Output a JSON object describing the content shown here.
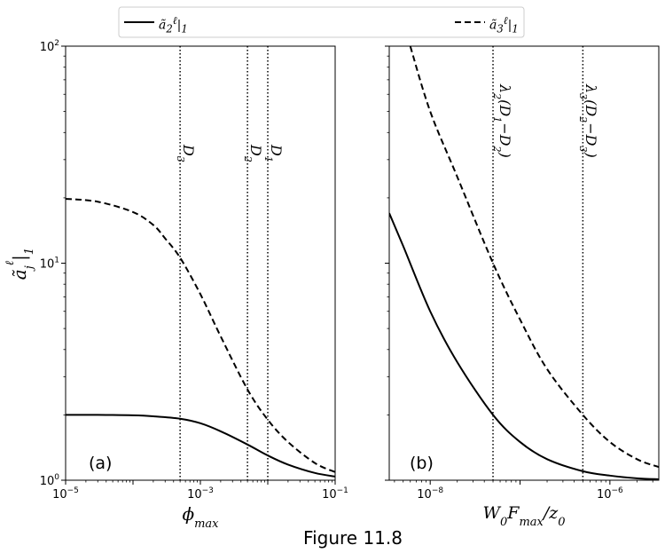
{
  "figure_label": "Figure 11.8",
  "legend": {
    "placement": "top",
    "entries": [
      {
        "label_html": "ã<sub>2</sub><sup>ℓ</sup>|<sub>1</sub>",
        "label": "ã2ℓ|1",
        "style": "solid"
      },
      {
        "label_html": "ã<sub>3</sub><sup>ℓ</sup>|<sub>1</sub>",
        "label": "ã3ℓ|1",
        "style": "dashed"
      }
    ]
  },
  "chart_data": [
    {
      "type": "line",
      "panel_label": "(a)",
      "xlabel": "φ_max",
      "ylabel": "ã_j^ℓ|_1",
      "xscale": "log",
      "yscale": "log",
      "xlim": [
        1e-05,
        0.1
      ],
      "ylim": [
        1,
        100
      ],
      "xticks": [
        {
          "value": 1e-05,
          "label": "10^-5"
        },
        {
          "value": 0.001,
          "label": "10^-3"
        },
        {
          "value": 0.1,
          "label": "10^-1"
        }
      ],
      "yticks": [
        {
          "value": 1,
          "label": "10^0"
        },
        {
          "value": 10,
          "label": "10^1"
        },
        {
          "value": 100,
          "label": "10^2"
        }
      ],
      "vlines": [
        {
          "x": 0.0005,
          "label": "D_3"
        },
        {
          "x": 0.005,
          "label": "D_2"
        },
        {
          "x": 0.01,
          "label": "D_1"
        }
      ],
      "series": [
        {
          "name": "ã2ℓ|1",
          "style": "solid",
          "x": [
            1e-05,
            3e-05,
            0.0001,
            0.0002,
            0.0005,
            0.001,
            0.002,
            0.005,
            0.01,
            0.02,
            0.05,
            0.1
          ],
          "y": [
            2.0,
            2.0,
            1.99,
            1.97,
            1.92,
            1.83,
            1.68,
            1.46,
            1.3,
            1.18,
            1.08,
            1.04
          ]
        },
        {
          "name": "ã3ℓ|1",
          "style": "dashed",
          "x": [
            1e-05,
            3e-05,
            0.0001,
            0.0002,
            0.0003,
            0.0005,
            0.001,
            0.002,
            0.005,
            0.01,
            0.02,
            0.05,
            0.1
          ],
          "y": [
            19.8,
            19.2,
            17.2,
            15.0,
            13.0,
            10.6,
            7.2,
            4.6,
            2.62,
            1.9,
            1.5,
            1.2,
            1.09
          ]
        }
      ]
    },
    {
      "type": "line",
      "panel_label": "(b)",
      "xlabel": "W_0 F_max / z_0",
      "xscale": "log",
      "yscale": "log",
      "xlim": [
        3.5e-09,
        3.5e-06
      ],
      "ylim": [
        1,
        100
      ],
      "xticks": [
        {
          "value": 1e-08,
          "label": "10^-8"
        },
        {
          "value": 1e-06,
          "label": "10^-6"
        }
      ],
      "vlines": [
        {
          "x": 5e-08,
          "label": "λ_2(D_1 − D_2)"
        },
        {
          "x": 5e-07,
          "label": "λ_3(D_2 − D_3)"
        }
      ],
      "series": [
        {
          "name": "ã2ℓ|1",
          "style": "solid",
          "x": [
            3.5e-09,
            5e-09,
            1e-08,
            2e-08,
            5e-08,
            1e-07,
            2e-07,
            5e-07,
            1e-06,
            2e-06,
            3.5e-06
          ],
          "y": [
            17.0,
            12.0,
            6.0,
            3.5,
            2.0,
            1.5,
            1.25,
            1.1,
            1.05,
            1.02,
            1.01
          ]
        },
        {
          "name": "ã3ℓ|1",
          "style": "dashed",
          "x": [
            6e-09,
            1e-08,
            2e-08,
            5e-08,
            1e-07,
            2e-07,
            5e-07,
            1e-06,
            2e-06,
            3.5e-06
          ],
          "y": [
            100,
            50,
            25,
            10,
            5.5,
            3.25,
            2.0,
            1.5,
            1.25,
            1.15
          ]
        }
      ]
    }
  ]
}
